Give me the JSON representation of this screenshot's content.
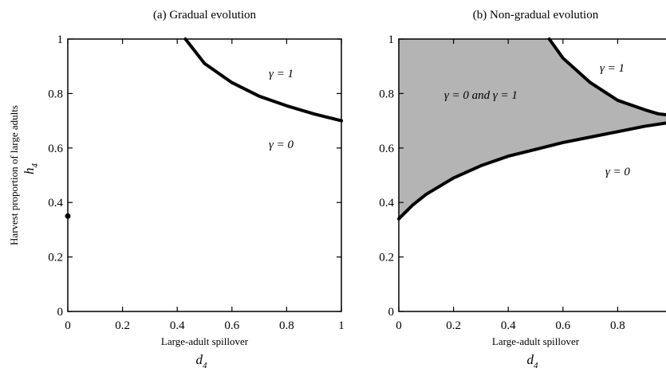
{
  "chart_data": [
    {
      "type": "area",
      "title": "(a) Gradual evolution",
      "xlabel": "Large-adult spillover",
      "xlabel_var": "d",
      "xlabel_sub": "4",
      "ylabel": "Harvest proportion of large adults",
      "ylabel_var": "h",
      "ylabel_sub": "4",
      "xlim": [
        0,
        1
      ],
      "ylim": [
        0,
        1
      ],
      "xticks": [
        0,
        0.2,
        0.4,
        0.6,
        0.8,
        1
      ],
      "yticks": [
        0,
        0.2,
        0.4,
        0.6,
        0.8,
        1
      ],
      "xtick_labels": [
        "0",
        "0.2",
        "0.4",
        "0.6",
        "0.8",
        "1"
      ],
      "ytick_labels": [
        "0",
        "0.2",
        "0.4",
        "0.6",
        "0.8",
        "1"
      ],
      "grid": false,
      "boundaries": [
        {
          "x": [
            0.43,
            0.5,
            0.6,
            0.7,
            0.8,
            0.9,
            1.0
          ],
          "y": [
            1.0,
            0.91,
            0.84,
            0.79,
            0.755,
            0.725,
            0.7
          ]
        }
      ],
      "points": [
        {
          "x": 0,
          "y": 0.35
        }
      ],
      "shaded_regions": [],
      "region_labels": [
        {
          "text": "γ = 1",
          "x": 0.78,
          "y": 0.86
        },
        {
          "text": "γ = 0",
          "x": 0.78,
          "y": 0.6
        }
      ]
    },
    {
      "type": "area",
      "title": "(b) Non-gradual evolution",
      "xlabel": "Large-adult spillover",
      "xlabel_var": "d",
      "xlabel_sub": "4",
      "ylabel": "",
      "xlim": [
        0,
        1
      ],
      "ylim": [
        0,
        1
      ],
      "xticks": [
        0,
        0.2,
        0.4,
        0.6,
        0.8,
        1
      ],
      "yticks": [
        0,
        0.2,
        0.4,
        0.6,
        0.8,
        1
      ],
      "xtick_labels": [
        "0",
        "0.2",
        "0.4",
        "0.6",
        "0.8",
        ""
      ],
      "ytick_labels": [
        "0",
        "0.2",
        "0.4",
        "0.6",
        "0.8",
        "1"
      ],
      "grid": false,
      "shade_color": "#b4b4b4",
      "boundaries": [
        {
          "x": [
            0.55,
            0.6,
            0.7,
            0.8,
            0.9,
            0.95,
            1.0
          ],
          "y": [
            1.0,
            0.93,
            0.84,
            0.775,
            0.74,
            0.725,
            0.72
          ]
        },
        {
          "x": [
            0,
            0.05,
            0.1,
            0.2,
            0.3,
            0.4,
            0.5,
            0.6,
            0.7,
            0.8,
            0.9,
            1.0
          ],
          "y": [
            0.34,
            0.39,
            0.43,
            0.49,
            0.535,
            0.57,
            0.595,
            0.62,
            0.64,
            0.66,
            0.68,
            0.695
          ]
        }
      ],
      "points": [],
      "region_labels": [
        {
          "text": "γ = 1",
          "x": 0.78,
          "y": 0.88
        },
        {
          "text": "γ = 0 and γ = 1",
          "x": 0.3,
          "y": 0.78
        },
        {
          "text": "γ = 0",
          "x": 0.8,
          "y": 0.5
        }
      ]
    }
  ]
}
